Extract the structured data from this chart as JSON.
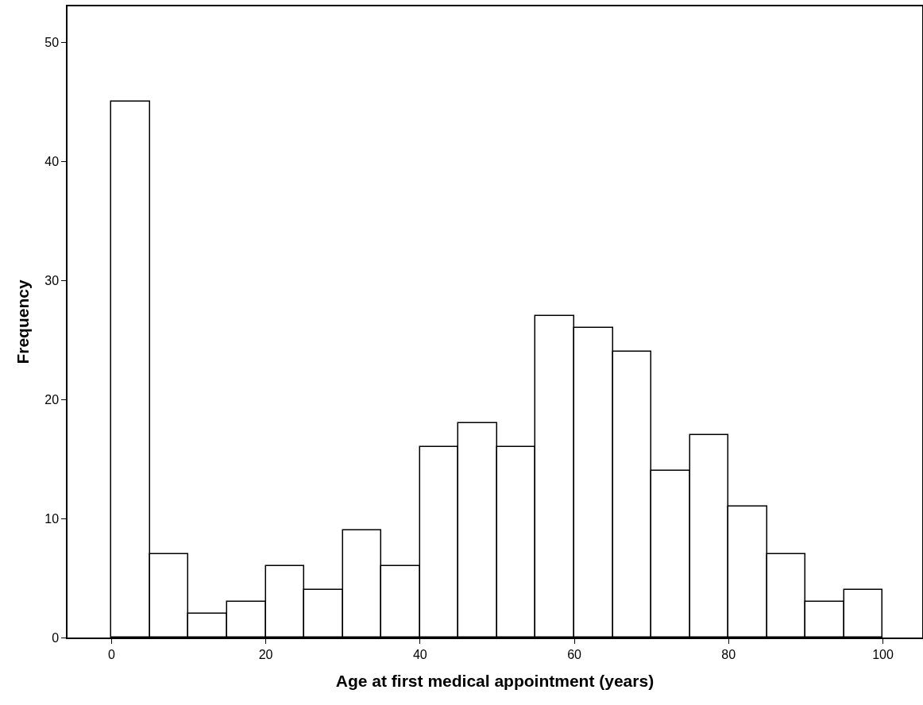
{
  "chart_data": {
    "type": "histogram",
    "xlabel": "Age at first medical appointment (years)",
    "ylabel": "Frequency",
    "bins": [
      0,
      5,
      10,
      15,
      20,
      25,
      30,
      35,
      40,
      45,
      50,
      55,
      60,
      65,
      70,
      75,
      80,
      85,
      90,
      95,
      100
    ],
    "values": [
      45,
      7,
      2,
      3,
      6,
      4,
      9,
      6,
      16,
      18,
      16,
      27,
      26,
      24,
      14,
      17,
      11,
      7,
      3,
      4
    ],
    "color": "#ffffff",
    "xlim": [
      -5.7,
      105.1
    ],
    "xticks": [
      0,
      20,
      40,
      60,
      80,
      100
    ],
    "ylim": [
      0,
      53
    ],
    "yticks": [
      0,
      10,
      20,
      30,
      40,
      50
    ],
    "grid": false,
    "legend": false
  }
}
